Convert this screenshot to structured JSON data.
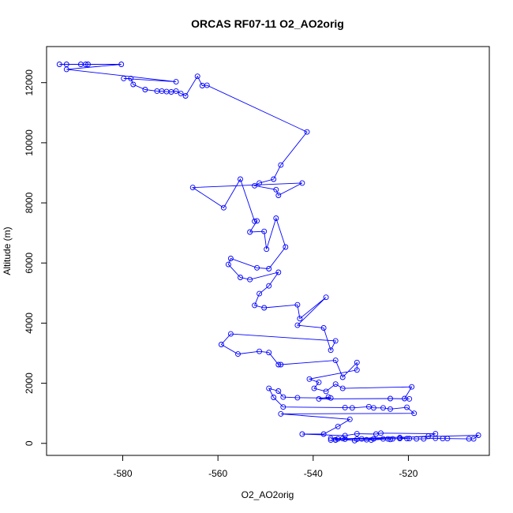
{
  "chart_data": {
    "type": "line",
    "title": "ORCAS RF07-11 O2_AO2orig",
    "xlabel": "O2_AO2orig",
    "ylabel": "Altitude (m)",
    "xlim": [
      -596,
      -503
    ],
    "ylim": [
      -400,
      13200
    ],
    "x_ticks": [
      -580,
      -560,
      -540,
      -520
    ],
    "y_ticks": [
      0,
      2000,
      4000,
      6000,
      8000,
      10000,
      12000
    ],
    "x_tick_labels": [
      "-580",
      "-560",
      "-540",
      "-520"
    ],
    "y_tick_labels": [
      "0",
      "2000",
      "4000",
      "6000",
      "8000",
      "10000",
      "12000"
    ],
    "marker": "open-circle",
    "colors": {
      "series": "#0000ff",
      "axis": "#000000",
      "background": "#ffffff"
    },
    "series": [
      {
        "points": [
          [
            -593.3,
            12610
          ],
          [
            -591.8,
            12610
          ],
          [
            -588.8,
            12610
          ],
          [
            -587.8,
            12610
          ],
          [
            -587.3,
            12610
          ],
          [
            -580.3,
            12610
          ],
          [
            -591.8,
            12440
          ],
          [
            -568.8,
            12030
          ],
          [
            -579.8,
            12140
          ],
          [
            -578.3,
            12140
          ],
          [
            -577.8,
            11940
          ],
          [
            -575.3,
            11770
          ],
          [
            -572.8,
            11720
          ],
          [
            -571.8,
            11720
          ],
          [
            -570.8,
            11700
          ],
          [
            -569.8,
            11690
          ],
          [
            -568.8,
            11720
          ],
          [
            -567.8,
            11640
          ],
          [
            -566.8,
            11560
          ],
          [
            -564.3,
            12210
          ],
          [
            -563.3,
            11900
          ],
          [
            -562.3,
            11910
          ],
          [
            -541.3,
            10360
          ],
          [
            -546.8,
            9260
          ],
          [
            -548.3,
            8790
          ],
          [
            -551.3,
            8660
          ],
          [
            -552.3,
            8570
          ],
          [
            -547.8,
            8440
          ],
          [
            -547.3,
            8250
          ],
          [
            -542.3,
            8660
          ],
          [
            -565.3,
            8510
          ],
          [
            -558.8,
            7840
          ],
          [
            -555.3,
            8790
          ],
          [
            -552.3,
            7390
          ],
          [
            -551.8,
            7400
          ],
          [
            -553.3,
            7030
          ],
          [
            -550.3,
            7050
          ],
          [
            -549.8,
            6460
          ],
          [
            -547.8,
            7490
          ],
          [
            -545.8,
            6530
          ],
          [
            -549.3,
            5810
          ],
          [
            -551.8,
            5840
          ],
          [
            -557.3,
            6150
          ],
          [
            -557.8,
            5950
          ],
          [
            -555.3,
            5520
          ],
          [
            -553.3,
            5450
          ],
          [
            -547.3,
            5690
          ],
          [
            -549.3,
            5240
          ],
          [
            -551.3,
            4980
          ],
          [
            -552.3,
            4590
          ],
          [
            -550.3,
            4510
          ],
          [
            -543.3,
            4610
          ],
          [
            -542.8,
            4150
          ],
          [
            -537.3,
            4860
          ],
          [
            -543.3,
            3930
          ],
          [
            -537.8,
            3840
          ],
          [
            -536.3,
            3100
          ],
          [
            -535.3,
            3410
          ],
          [
            -557.3,
            3640
          ],
          [
            -559.3,
            3290
          ],
          [
            -555.8,
            2970
          ],
          [
            -551.3,
            3060
          ],
          [
            -549.3,
            3020
          ],
          [
            -547.3,
            2620
          ],
          [
            -546.8,
            2620
          ],
          [
            -535.3,
            2760
          ],
          [
            -533.8,
            2200
          ],
          [
            -530.8,
            2690
          ],
          [
            -530.8,
            2440
          ],
          [
            -540.8,
            2140
          ],
          [
            -538.8,
            2030
          ],
          [
            -539.8,
            1830
          ],
          [
            -537.3,
            1730
          ],
          [
            -535.3,
            1970
          ],
          [
            -533.8,
            1830
          ],
          [
            -519.3,
            1880
          ],
          [
            -520.8,
            1490
          ],
          [
            -519.8,
            1480
          ],
          [
            -523.8,
            1490
          ],
          [
            -538.8,
            1480
          ],
          [
            -536.8,
            1540
          ],
          [
            -536.3,
            1510
          ],
          [
            -543.3,
            1520
          ],
          [
            -546.3,
            1540
          ],
          [
            -547.3,
            1740
          ],
          [
            -549.3,
            1830
          ],
          [
            -548.3,
            1530
          ],
          [
            -546.3,
            1210
          ],
          [
            -533.3,
            1190
          ],
          [
            -531.8,
            1180
          ],
          [
            -528.3,
            1220
          ],
          [
            -527.3,
            1180
          ],
          [
            -525.3,
            1180
          ],
          [
            -523.8,
            1140
          ],
          [
            -520.3,
            1200
          ],
          [
            -518.8,
            1000
          ],
          [
            -546.8,
            980
          ],
          [
            -532.3,
            800
          ],
          [
            -534.8,
            560
          ],
          [
            -537.8,
            310
          ],
          [
            -542.3,
            310
          ],
          [
            -533.3,
            260
          ],
          [
            -530.8,
            320
          ],
          [
            -526.8,
            310
          ],
          [
            -525.8,
            340
          ],
          [
            -514.3,
            320
          ],
          [
            -515.8,
            240
          ],
          [
            -521.8,
            190
          ],
          [
            -520.3,
            160
          ],
          [
            -518.3,
            150
          ],
          [
            -516.8,
            150
          ],
          [
            -514.3,
            170
          ],
          [
            -512.8,
            160
          ],
          [
            -511.8,
            160
          ],
          [
            -507.3,
            150
          ],
          [
            -506.3,
            150
          ],
          [
            -505.3,
            270
          ],
          [
            -534.8,
            150
          ],
          [
            -535.3,
            120
          ],
          [
            -536.3,
            110
          ],
          [
            -535.3,
            110
          ],
          [
            -533.3,
            140
          ],
          [
            -530.8,
            140
          ],
          [
            -529.8,
            150
          ],
          [
            -528.8,
            120
          ],
          [
            -527.3,
            150
          ],
          [
            -525.3,
            150
          ],
          [
            -523.3,
            150
          ],
          [
            -521.8,
            160
          ],
          [
            -519.8,
            160
          ],
          [
            -533.8,
            160
          ],
          [
            -536.3,
            170
          ],
          [
            -531.3,
            90
          ],
          [
            -527.8,
            110
          ],
          [
            -524.3,
            150
          ],
          [
            -523.8,
            130
          ]
        ]
      }
    ]
  }
}
